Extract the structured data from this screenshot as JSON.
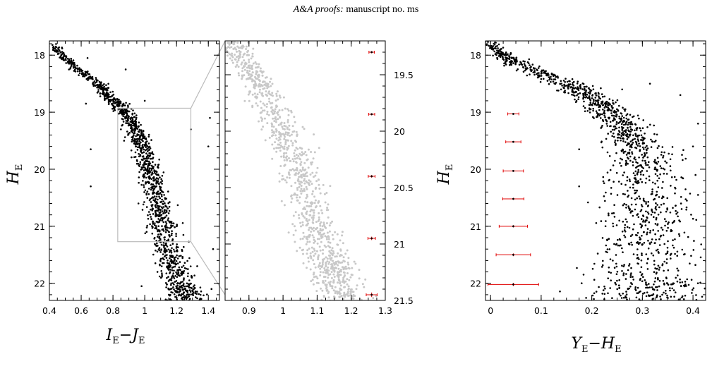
{
  "header": {
    "journal": "A&A proofs:",
    "rest": " manuscript no. ms"
  },
  "colors": {
    "points_main": "#000000",
    "points_zoom": "#c8c8c8",
    "error_bars": "#e00000",
    "zoom_box": "#bbbbbb"
  },
  "chart_data": [
    {
      "type": "scatter",
      "panel": "left",
      "xlabel": "I_E − J_E",
      "ylabel": "H_E",
      "xlim": [
        0.4,
        1.47
      ],
      "ylim": [
        22.3,
        17.75
      ],
      "y_inverted": true,
      "x_ticks": [
        "0.4",
        "0.6",
        "0.8",
        "1",
        "1.2",
        "1.4"
      ],
      "y_ticks": [
        "18",
        "19",
        "20",
        "21",
        "22"
      ],
      "ridge_line": [
        [
          0.42,
          17.8
        ],
        [
          0.55,
          18.2
        ],
        [
          0.7,
          18.5
        ],
        [
          0.8,
          18.8
        ],
        [
          0.88,
          19.0
        ],
        [
          0.94,
          19.3
        ],
        [
          0.99,
          19.6
        ],
        [
          1.03,
          20.0
        ],
        [
          1.07,
          20.4
        ],
        [
          1.1,
          20.8
        ],
        [
          1.13,
          21.2
        ],
        [
          1.17,
          21.6
        ],
        [
          1.22,
          22.0
        ],
        [
          1.27,
          22.3
        ]
      ],
      "outliers": [
        [
          0.47,
          17.95
        ],
        [
          0.64,
          18.05
        ],
        [
          0.88,
          18.25
        ],
        [
          0.63,
          18.85
        ],
        [
          1.0,
          18.8
        ],
        [
          0.66,
          19.65
        ],
        [
          0.66,
          20.3
        ],
        [
          1.29,
          19.3
        ],
        [
          1.41,
          19.1
        ],
        [
          1.4,
          19.6
        ],
        [
          1.43,
          21.4
        ],
        [
          0.85,
          19.3
        ],
        [
          0.87,
          19.5
        ],
        [
          1.08,
          21.8
        ],
        [
          0.98,
          22.05
        ],
        [
          1.42,
          22.1
        ],
        [
          1.33,
          21.7
        ]
      ],
      "zoom_box": {
        "x": [
          0.83,
          1.29
        ],
        "y": [
          18.93,
          21.27
        ]
      }
    },
    {
      "type": "scatter",
      "panel": "middle",
      "xlim": [
        0.83,
        1.3
      ],
      "ylim": [
        21.5,
        19.2
      ],
      "y_inverted": true,
      "x_ticks": [
        "0.9",
        "1",
        "1.1",
        "1.2",
        "1.3"
      ],
      "y_ticks": [
        "19.5",
        "20",
        "20.5",
        "21",
        "21.5"
      ],
      "ridge_line": [
        [
          0.84,
          19.2
        ],
        [
          0.9,
          19.45
        ],
        [
          0.95,
          19.7
        ],
        [
          1.0,
          20.0
        ],
        [
          1.04,
          20.3
        ],
        [
          1.07,
          20.6
        ],
        [
          1.1,
          20.9
        ],
        [
          1.13,
          21.15
        ],
        [
          1.16,
          21.35
        ],
        [
          1.2,
          21.55
        ]
      ],
      "error_bars": [
        {
          "x": 1.26,
          "y": 19.3,
          "xerr": 0.008,
          "yerr": 0.01
        },
        {
          "x": 1.26,
          "y": 19.85,
          "xerr": 0.009,
          "yerr": 0.01
        },
        {
          "x": 1.26,
          "y": 20.4,
          "xerr": 0.01,
          "yerr": 0.012
        },
        {
          "x": 1.26,
          "y": 20.95,
          "xerr": 0.011,
          "yerr": 0.015
        },
        {
          "x": 1.26,
          "y": 21.45,
          "xerr": 0.016,
          "yerr": 0.02
        }
      ]
    },
    {
      "type": "scatter",
      "panel": "right",
      "xlabel": "Y_E − H_E",
      "ylabel": "H_E",
      "xlim": [
        -0.01,
        0.425
      ],
      "ylim": [
        22.3,
        17.75
      ],
      "y_inverted": true,
      "x_ticks": [
        "0",
        "0.1",
        "0.2",
        "0.3",
        "0.4"
      ],
      "y_ticks": [
        "18",
        "19",
        "20",
        "21",
        "22"
      ],
      "ridge_line": [
        [
          -0.005,
          17.8
        ],
        [
          0.03,
          18.05
        ],
        [
          0.08,
          18.25
        ],
        [
          0.15,
          18.5
        ],
        [
          0.2,
          18.75
        ],
        [
          0.24,
          19.0
        ],
        [
          0.27,
          19.3
        ],
        [
          0.29,
          19.6
        ],
        [
          0.3,
          20.0
        ],
        [
          0.305,
          20.5
        ],
        [
          0.31,
          21.0
        ],
        [
          0.31,
          21.5
        ],
        [
          0.31,
          22.0
        ],
        [
          0.31,
          22.3
        ]
      ],
      "outliers": [
        [
          0.175,
          19.65
        ],
        [
          0.175,
          20.3
        ],
        [
          0.26,
          18.6
        ],
        [
          0.315,
          18.5
        ],
        [
          0.375,
          18.7
        ],
        [
          0.41,
          19.2
        ],
        [
          0.405,
          20.1
        ],
        [
          0.41,
          20.45
        ],
        [
          0.4,
          19.6
        ],
        [
          0.18,
          22.0
        ]
      ],
      "error_bars": [
        {
          "x": 0.045,
          "y": 19.03,
          "xerr": 0.011,
          "yerr": 0.012
        },
        {
          "x": 0.045,
          "y": 19.52,
          "xerr": 0.015,
          "yerr": 0.014
        },
        {
          "x": 0.045,
          "y": 20.03,
          "xerr": 0.02,
          "yerr": 0.016
        },
        {
          "x": 0.045,
          "y": 20.52,
          "xerr": 0.021,
          "yerr": 0.018
        },
        {
          "x": 0.045,
          "y": 21.0,
          "xerr": 0.028,
          "yerr": 0.02
        },
        {
          "x": 0.045,
          "y": 21.5,
          "xerr": 0.034,
          "yerr": 0.024
        },
        {
          "x": 0.045,
          "y": 22.02,
          "xerr": 0.05,
          "yerr": 0.028
        }
      ]
    }
  ]
}
